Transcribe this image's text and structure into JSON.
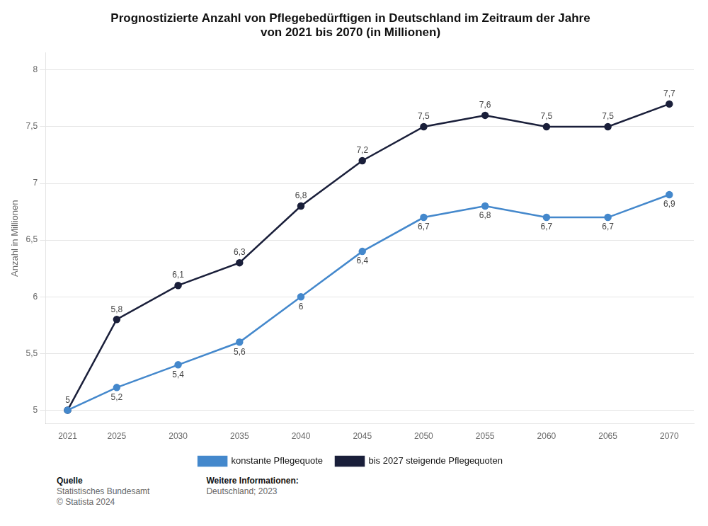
{
  "chart_data": {
    "type": "line",
    "title": "Prognostizierte Anzahl von Pflegebedürftigen in Deutschland im Zeitraum der Jahre\nvon 2021 bis 2070 (in Millionen)",
    "y_label": "Anzahl in Millionen",
    "x": [
      2021,
      2025,
      2030,
      2035,
      2040,
      2045,
      2050,
      2055,
      2060,
      2065,
      2070
    ],
    "series": [
      {
        "name": "konstante Pflegequote",
        "color": "#4488cc",
        "marker": "circle",
        "line_style": "solid",
        "values": [
          5.0,
          5.2,
          5.4,
          5.6,
          6.0,
          6.4,
          6.7,
          6.8,
          6.7,
          6.7,
          6.9
        ],
        "value_labels": [
          "5",
          "5,2",
          "5,4",
          "5,6",
          "6",
          "6,4",
          "6,7",
          "6,8",
          "6,7",
          "6,7",
          "6,9"
        ]
      },
      {
        "name": "bis 2027 steigende Pflegequoten",
        "color": "#1a1f3a",
        "marker": "circle",
        "line_style": "solid",
        "values": [
          5.0,
          5.8,
          6.1,
          6.3,
          6.8,
          7.2,
          7.5,
          7.6,
          7.5,
          7.5,
          7.7
        ],
        "value_labels": [
          null,
          "5,8",
          "6,1",
          "6,3",
          "6,8",
          "7,2",
          "7,5",
          "7,6",
          "7,5",
          "7,5",
          "7,7"
        ]
      }
    ],
    "xlim": [
      2019.2,
      2072.0
    ],
    "xticks": [
      2021,
      2025,
      2030,
      2035,
      2040,
      2045,
      2050,
      2055,
      2060,
      2065,
      2070
    ],
    "ylim": [
      4.88,
      8.15
    ],
    "yticks": [
      5,
      {
        "value": 5.5,
        "label": "5,5"
      },
      6,
      {
        "value": 6.5,
        "label": "6,5"
      },
      7,
      {
        "value": 7.5,
        "label": "7,5"
      },
      8
    ],
    "grid": true,
    "legend": "bottom",
    "data_labels": true,
    "annotations": [
      [
        "Quelle",
        "Statistisches Bundesamt",
        "© Statista 2024"
      ],
      [
        "Weitere Informationen:",
        "Deutschland; 2023"
      ]
    ]
  }
}
